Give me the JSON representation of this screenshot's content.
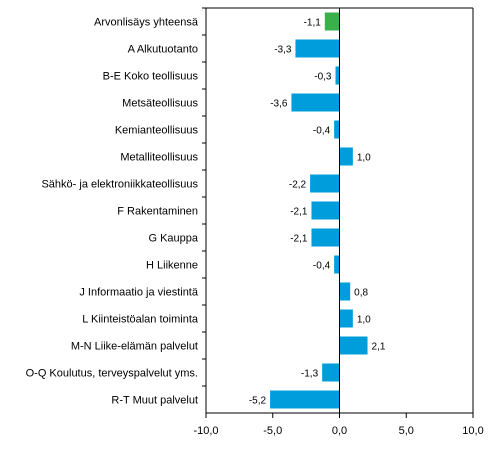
{
  "chart_data": {
    "type": "bar",
    "orientation": "horizontal",
    "title": "",
    "xlabel": "",
    "ylabel": "",
    "xlim": [
      -10,
      10
    ],
    "x_ticks": [
      -10,
      -5,
      0,
      5,
      10
    ],
    "x_tick_labels": [
      "-10,0",
      "-5,0",
      "0,0",
      "5,0",
      "10,0"
    ],
    "grid": false,
    "legend": "none",
    "colors": {
      "highlight": "#3ab04a",
      "default": "#009ddc"
    },
    "categories": [
      "Arvonlisäys yhteensä",
      "A Alkutuotanto",
      "B-E Koko teollisuus",
      "Metsäteollisuus",
      "Kemianteollisuus",
      "Metalliteollisuus",
      "Sähkö- ja elektroniikkateollisuus",
      "F Rakentaminen",
      "G Kauppa",
      "H Liikenne",
      "J Informaatio ja viestintä",
      "L Kiinteistöalan toiminta",
      "M-N Liike-elämän palvelut",
      "O-Q Koulutus, terveyspalvelut yms.",
      "R-T Muut palvelut"
    ],
    "values": [
      -1.1,
      -3.3,
      -0.3,
      -3.6,
      -0.4,
      1.0,
      -2.2,
      -2.1,
      -2.1,
      -0.4,
      0.8,
      1.0,
      2.1,
      -1.3,
      -5.2
    ],
    "value_labels": [
      "-1,1",
      "-3,3",
      "-0,3",
      "-3,6",
      "-0,4",
      "1,0",
      "-2,2",
      "-2,1",
      "-2,1",
      "-0,4",
      "0,8",
      "1,0",
      "2,1",
      "-1,3",
      "-5,2"
    ],
    "highlight_index": 0
  }
}
